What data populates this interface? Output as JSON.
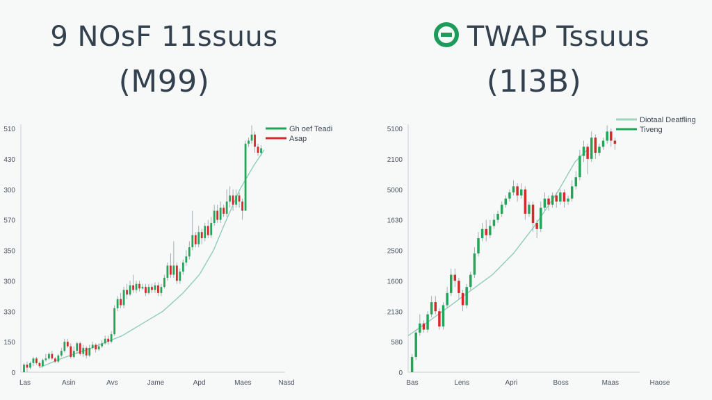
{
  "left": {
    "title_line1": "9 NOsF 11ssuus",
    "title_line2": "(M99)",
    "logo_icon": "",
    "chart_data": {
      "type": "candlestick",
      "y_ticks": [
        "510",
        "430",
        "300",
        "570",
        "350",
        "300",
        "330",
        "150",
        "0"
      ],
      "x_ticks": [
        "Las",
        "Asin",
        "Avs",
        "Jame",
        "Apd",
        "Maes",
        "Nasd"
      ],
      "ylim": [
        0,
        8
      ],
      "legend": [
        {
          "label": "Gh oef Teadi",
          "color": "#22a559"
        },
        {
          "label": "Asap",
          "color": "#d42a2a"
        }
      ],
      "up_color": "#22a559",
      "down_color": "#d42a2a",
      "wick_color": "#9aa3a8",
      "trend_color": "#8fcdb6",
      "trend": [
        [
          9,
          0.15
        ],
        [
          20,
          0.45
        ],
        [
          35,
          0.8
        ],
        [
          50,
          1.2
        ],
        [
          60,
          1.6
        ],
        [
          70,
          2.0
        ],
        [
          80,
          2.6
        ],
        [
          88,
          3.2
        ],
        [
          95,
          4.0
        ],
        [
          100,
          4.8
        ],
        [
          108,
          6.0
        ],
        [
          115,
          6.8
        ],
        [
          120,
          7.3
        ]
      ],
      "candles": [
        [
          1,
          0.0,
          0.25,
          0.0,
          0.3
        ],
        [
          2,
          0.25,
          0.15,
          0.0,
          0.35
        ],
        [
          3,
          0.15,
          0.3,
          0.1,
          0.35
        ],
        [
          4,
          0.3,
          0.45,
          0.2,
          0.5
        ],
        [
          5,
          0.45,
          0.3,
          0.25,
          0.5
        ],
        [
          6,
          0.3,
          0.2,
          0.15,
          0.35
        ],
        [
          7,
          0.2,
          0.4,
          0.15,
          0.45
        ],
        [
          8,
          0.4,
          0.45,
          0.35,
          0.6
        ],
        [
          9,
          0.45,
          0.6,
          0.4,
          0.65
        ],
        [
          10,
          0.6,
          0.45,
          0.4,
          0.7
        ],
        [
          11,
          0.45,
          0.35,
          0.3,
          0.5
        ],
        [
          12,
          0.35,
          0.55,
          0.3,
          0.6
        ],
        [
          13,
          0.55,
          0.7,
          0.5,
          0.8
        ],
        [
          14,
          0.7,
          1.0,
          0.65,
          1.1
        ],
        [
          15,
          1.0,
          0.85,
          0.8,
          1.1
        ],
        [
          16,
          0.85,
          0.5,
          0.45,
          0.95
        ],
        [
          17,
          0.5,
          0.7,
          0.45,
          0.85
        ],
        [
          18,
          0.7,
          0.95,
          0.6,
          1.0
        ],
        [
          19,
          0.95,
          0.6,
          0.55,
          1.0
        ],
        [
          20,
          0.6,
          0.8,
          0.5,
          0.9
        ],
        [
          21,
          0.8,
          0.55,
          0.45,
          0.85
        ],
        [
          22,
          0.55,
          0.8,
          0.5,
          0.9
        ],
        [
          23,
          0.8,
          0.9,
          0.75,
          1.0
        ],
        [
          24,
          0.9,
          0.75,
          0.65,
          0.95
        ],
        [
          25,
          0.75,
          0.85,
          0.7,
          0.95
        ],
        [
          26,
          0.85,
          0.95,
          0.8,
          1.05
        ],
        [
          27,
          0.95,
          1.1,
          0.9,
          1.2
        ],
        [
          28,
          1.1,
          1.0,
          0.9,
          1.2
        ],
        [
          29,
          1.0,
          1.25,
          0.95,
          1.35
        ],
        [
          30,
          1.25,
          2.1,
          1.2,
          2.2
        ],
        [
          31,
          2.1,
          2.4,
          2.0,
          2.5
        ],
        [
          32,
          2.4,
          2.2,
          2.1,
          2.6
        ],
        [
          33,
          2.2,
          2.7,
          2.1,
          2.8
        ],
        [
          34,
          2.7,
          2.55,
          2.4,
          2.9
        ],
        [
          35,
          2.55,
          2.85,
          2.5,
          3.0
        ],
        [
          36,
          2.85,
          2.7,
          2.6,
          3.2
        ],
        [
          37,
          2.7,
          2.9,
          2.6,
          3.0
        ],
        [
          38,
          2.9,
          2.75,
          2.65,
          3.0
        ],
        [
          39,
          2.75,
          2.8,
          2.7,
          2.9
        ],
        [
          40,
          2.8,
          2.6,
          2.5,
          2.9
        ],
        [
          41,
          2.6,
          2.8,
          2.55,
          2.9
        ],
        [
          42,
          2.8,
          2.7,
          2.6,
          2.9
        ],
        [
          43,
          2.7,
          2.85,
          2.6,
          2.95
        ],
        [
          44,
          2.85,
          2.6,
          2.5,
          2.95
        ],
        [
          45,
          2.6,
          2.8,
          2.5,
          2.9
        ],
        [
          46,
          2.8,
          3.1,
          2.75,
          3.2
        ],
        [
          47,
          3.1,
          3.5,
          3.0,
          3.6
        ],
        [
          48,
          3.5,
          3.2,
          3.1,
          3.9
        ],
        [
          49,
          3.2,
          3.5,
          3.1,
          4.3
        ],
        [
          50,
          3.5,
          3.0,
          2.9,
          3.6
        ],
        [
          51,
          3.0,
          3.3,
          2.9,
          3.4
        ],
        [
          52,
          3.3,
          3.6,
          3.2,
          3.7
        ],
        [
          53,
          3.6,
          3.8,
          3.5,
          4.0
        ],
        [
          54,
          3.8,
          4.1,
          3.7,
          4.3
        ],
        [
          55,
          4.1,
          4.5,
          4.0,
          5.3
        ],
        [
          56,
          4.5,
          4.2,
          4.1,
          4.6
        ],
        [
          57,
          4.2,
          4.6,
          4.1,
          4.8
        ],
        [
          58,
          4.6,
          4.4,
          4.2,
          4.7
        ],
        [
          59,
          4.4,
          4.8,
          4.3,
          4.9
        ],
        [
          60,
          4.8,
          4.5,
          4.4,
          5.0
        ],
        [
          61,
          4.5,
          4.9,
          4.4,
          5.1
        ],
        [
          62,
          4.9,
          5.3,
          4.8,
          5.5
        ],
        [
          63,
          5.3,
          5.0,
          4.9,
          5.5
        ],
        [
          64,
          5.0,
          5.4,
          4.9,
          5.6
        ],
        [
          65,
          5.4,
          5.2,
          5.1,
          5.5
        ],
        [
          66,
          5.2,
          5.6,
          5.1,
          6.0
        ],
        [
          67,
          5.6,
          5.8,
          5.4,
          6.1
        ],
        [
          68,
          5.8,
          5.5,
          5.3,
          6.0
        ],
        [
          69,
          5.5,
          5.8,
          5.4,
          6.0
        ],
        [
          70,
          5.8,
          5.6,
          5.4,
          5.9
        ],
        [
          71,
          5.6,
          5.3,
          5.0,
          5.7
        ],
        [
          72,
          5.3,
          7.5,
          5.3,
          7.6
        ],
        [
          73,
          7.5,
          7.6,
          7.4,
          7.7
        ],
        [
          74,
          7.6,
          7.8,
          7.5,
          8.1
        ],
        [
          75,
          7.8,
          7.4,
          7.2,
          7.9
        ],
        [
          76,
          7.4,
          7.2,
          7.1,
          7.5
        ],
        [
          77,
          7.2,
          7.35,
          7.1,
          7.45
        ]
      ]
    }
  },
  "right": {
    "title_line1": "TWAP Tssuus",
    "title_line2": "(1I3B)",
    "logo_icon": "twap-logo-icon",
    "chart_data": {
      "type": "candlestick",
      "y_ticks": [
        "5100",
        "2100",
        "5000",
        "1630",
        "2500",
        "1600",
        "2130",
        "580",
        "0"
      ],
      "x_ticks": [
        "Bas",
        "Lens",
        "Apri",
        "Boss",
        "Maas",
        "Haose"
      ],
      "ylim": [
        0,
        8
      ],
      "legend": [
        {
          "label": "Diotaal Deatfling",
          "color": "#9fd6c1"
        },
        {
          "label": "Tiveng",
          "color": "#22a559"
        }
      ],
      "up_color": "#22a559",
      "down_color": "#d42a2a",
      "wick_color": "#9aa3a8",
      "trend_color": "#8fcdb6",
      "trend": [
        [
          0,
          1.2
        ],
        [
          10,
          1.6
        ],
        [
          22,
          2.1
        ],
        [
          35,
          2.65
        ],
        [
          48,
          3.2
        ],
        [
          60,
          3.9
        ],
        [
          72,
          4.8
        ],
        [
          85,
          5.9
        ],
        [
          95,
          6.9
        ],
        [
          102,
          7.3
        ]
      ],
      "candles": [
        [
          1,
          0.0,
          0.5,
          0.0,
          0.6
        ],
        [
          2,
          0.5,
          1.3,
          0.4,
          1.4
        ],
        [
          3,
          1.3,
          1.6,
          1.2,
          1.9
        ],
        [
          4,
          1.6,
          1.4,
          1.3,
          1.7
        ],
        [
          5,
          1.4,
          1.9,
          1.3,
          2.0
        ],
        [
          6,
          1.9,
          2.3,
          1.8,
          2.5
        ],
        [
          7,
          2.3,
          2.0,
          1.9,
          2.5
        ],
        [
          8,
          2.0,
          1.5,
          1.4,
          2.1
        ],
        [
          9,
          1.5,
          2.2,
          1.4,
          2.3
        ],
        [
          10,
          2.2,
          2.6,
          2.1,
          2.8
        ],
        [
          11,
          2.6,
          3.2,
          2.5,
          3.4
        ],
        [
          12,
          3.2,
          3.0,
          2.8,
          3.4
        ],
        [
          13,
          3.0,
          2.6,
          2.4,
          3.1
        ],
        [
          14,
          2.6,
          2.2,
          2.0,
          2.7
        ],
        [
          15,
          2.2,
          2.8,
          2.1,
          2.9
        ],
        [
          16,
          2.8,
          3.2,
          2.7,
          3.3
        ],
        [
          17,
          3.2,
          3.9,
          3.1,
          4.1
        ],
        [
          18,
          3.9,
          4.4,
          3.8,
          4.6
        ],
        [
          19,
          4.4,
          4.7,
          4.3,
          4.9
        ],
        [
          20,
          4.7,
          4.5,
          4.3,
          5.0
        ],
        [
          21,
          4.5,
          4.8,
          4.4,
          5.0
        ],
        [
          22,
          4.8,
          5.0,
          4.7,
          5.2
        ],
        [
          23,
          5.0,
          5.2,
          4.9,
          5.3
        ],
        [
          24,
          5.2,
          5.5,
          5.1,
          5.6
        ],
        [
          25,
          5.5,
          5.7,
          5.4,
          5.8
        ],
        [
          26,
          5.7,
          5.9,
          5.6,
          6.0
        ],
        [
          27,
          5.9,
          6.1,
          5.8,
          6.3
        ],
        [
          28,
          6.1,
          5.8,
          5.6,
          6.2
        ],
        [
          29,
          5.8,
          6.0,
          5.7,
          6.2
        ],
        [
          30,
          6.0,
          5.2,
          5.0,
          6.1
        ],
        [
          31,
          5.2,
          5.5,
          5.1,
          5.6
        ],
        [
          32,
          5.5,
          4.9,
          4.6,
          5.6
        ],
        [
          33,
          4.9,
          4.7,
          4.4,
          5.0
        ],
        [
          34,
          4.7,
          5.4,
          4.6,
          5.6
        ],
        [
          35,
          5.4,
          5.7,
          5.3,
          5.9
        ],
        [
          36,
          5.7,
          5.5,
          5.3,
          5.8
        ],
        [
          37,
          5.5,
          5.8,
          5.4,
          5.9
        ],
        [
          38,
          5.8,
          5.6,
          5.4,
          5.9
        ],
        [
          39,
          5.6,
          5.9,
          5.5,
          6.0
        ],
        [
          40,
          5.9,
          5.6,
          5.4,
          6.0
        ],
        [
          41,
          5.6,
          5.7,
          5.5,
          5.8
        ],
        [
          42,
          5.7,
          6.1,
          5.6,
          6.3
        ],
        [
          43,
          6.1,
          6.4,
          6.0,
          6.6
        ],
        [
          44,
          6.4,
          7.1,
          6.3,
          7.3
        ],
        [
          45,
          7.1,
          7.4,
          6.9,
          7.6
        ],
        [
          46,
          7.4,
          7.0,
          6.5,
          7.5
        ],
        [
          47,
          7.0,
          7.7,
          6.9,
          7.9
        ],
        [
          48,
          7.7,
          7.2,
          7.0,
          7.8
        ],
        [
          49,
          7.2,
          7.4,
          7.1,
          7.5
        ],
        [
          50,
          7.4,
          7.6,
          7.3,
          7.7
        ],
        [
          51,
          7.6,
          7.9,
          7.5,
          8.1
        ],
        [
          52,
          7.9,
          7.6,
          7.4,
          8.0
        ],
        [
          53,
          7.6,
          7.5,
          7.3,
          7.7
        ]
      ]
    }
  }
}
